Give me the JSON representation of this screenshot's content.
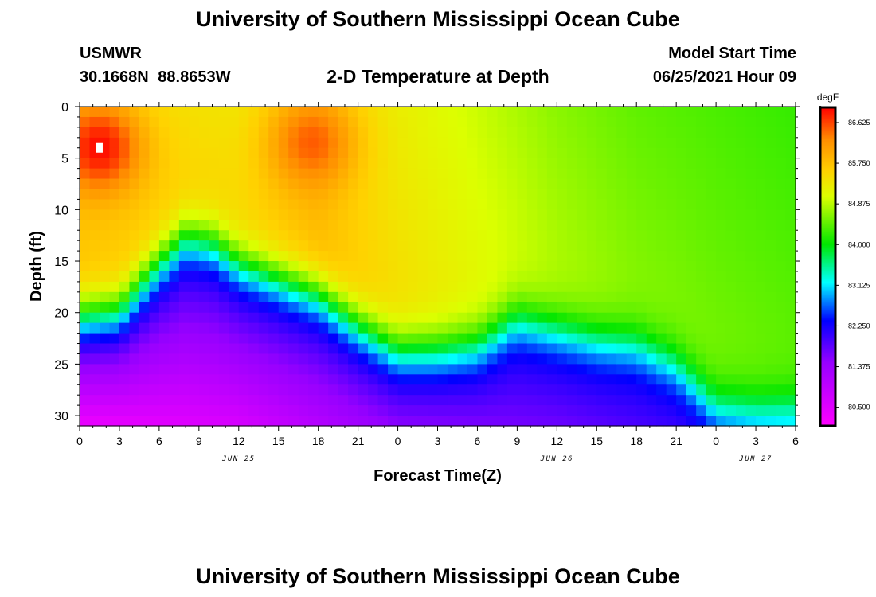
{
  "header": {
    "title": "University of Southern Mississippi Ocean Cube",
    "station": "USMWR",
    "coordinates": "30.1668N  88.8653W",
    "chart_title": "2-D Temperature at Depth",
    "model_start_label": "Model Start Time",
    "model_start_value": "06/25/2021 Hour 09"
  },
  "footer": {
    "title": "University of Southern Mississippi Ocean Cube"
  },
  "chart_data": {
    "type": "heatmap",
    "title": "2-D Temperature at Depth",
    "xlabel": "Forecast Time(Z)",
    "ylabel": "Depth (ft)",
    "x_range_hours": [
      0,
      54
    ],
    "x_ticks": [
      0,
      3,
      6,
      9,
      12,
      15,
      18,
      21,
      24,
      27,
      30,
      33,
      36,
      39,
      42,
      45,
      48,
      51,
      54
    ],
    "x_tick_labels": [
      "0",
      "3",
      "6",
      "9",
      "12",
      "15",
      "18",
      "21",
      "0",
      "3",
      "6",
      "9",
      "12",
      "15",
      "18",
      "21",
      "0",
      "3",
      "6"
    ],
    "date_labels": [
      {
        "text": "JUN 25",
        "at_hour": 12
      },
      {
        "text": "JUN 26",
        "at_hour": 36
      },
      {
        "text": "JUN 27",
        "at_hour": 51
      }
    ],
    "y_range": [
      0,
      31
    ],
    "y_ticks": [
      0,
      5,
      10,
      15,
      20,
      25,
      30
    ],
    "y_tick_labels": [
      "0",
      "5",
      "10",
      "15",
      "20",
      "25",
      "30"
    ],
    "colorbar": {
      "unit": "degF",
      "min": 80.1,
      "max": 86.95,
      "tick_values": [
        86.625,
        85.75,
        84.875,
        84.0,
        83.125,
        82.25,
        81.375,
        80.5
      ],
      "tick_labels": [
        "86.625",
        "85.750",
        "84.875",
        "84.000",
        "83.125",
        "82.250",
        "81.375",
        "80.500"
      ]
    },
    "surface_temperature_degF": [
      {
        "hour": 0,
        "value": 85.8
      },
      {
        "hour": 12,
        "value": 85.6
      },
      {
        "hour": 18,
        "value": 85.9
      },
      {
        "hour": 24,
        "value": 85.5
      },
      {
        "hour": 30,
        "value": 85.2
      },
      {
        "hour": 36,
        "value": 84.9
      },
      {
        "hour": 42,
        "value": 84.7
      },
      {
        "hour": 48,
        "value": 84.6
      },
      {
        "hour": 54,
        "value": 84.5
      }
    ],
    "surface_layer_peak_degF": [
      {
        "hour": 1.5,
        "depth_ft": 4,
        "value": 86.9
      },
      {
        "hour": 17.5,
        "depth_ft": 3.5,
        "value": 86.5
      }
    ],
    "thermocline_depth_ft": [
      {
        "hour": 0,
        "depth": 20
      },
      {
        "hour": 3,
        "depth": 19.5
      },
      {
        "hour": 6,
        "depth": 15
      },
      {
        "hour": 8,
        "depth": 12.5
      },
      {
        "hour": 10,
        "depth": 13
      },
      {
        "hour": 12,
        "depth": 15
      },
      {
        "hour": 15,
        "depth": 16.5
      },
      {
        "hour": 18,
        "depth": 18
      },
      {
        "hour": 21,
        "depth": 21
      },
      {
        "hour": 24,
        "depth": 23.5
      },
      {
        "hour": 27,
        "depth": 23.5
      },
      {
        "hour": 30,
        "depth": 23
      },
      {
        "hour": 33,
        "depth": 20.5
      },
      {
        "hour": 36,
        "depth": 21.5
      },
      {
        "hour": 39,
        "depth": 22.5
      },
      {
        "hour": 42,
        "depth": 23
      },
      {
        "hour": 45,
        "depth": 25
      },
      {
        "hour": 48,
        "depth": 29
      },
      {
        "hour": 51,
        "depth": 29.5
      },
      {
        "hour": 54,
        "depth": 29.5
      }
    ],
    "bottom_temperature_degF": [
      {
        "hour": 0,
        "value": 80.3
      },
      {
        "hour": 12,
        "value": 80.6
      },
      {
        "hour": 24,
        "value": 81.5
      },
      {
        "hour": 36,
        "value": 81.7
      },
      {
        "hour": 45,
        "value": 82.0
      },
      {
        "hour": 54,
        "value": 82.6
      }
    ],
    "marker": {
      "hour": 1.5,
      "depth_ft": 4,
      "shape": "white-square"
    },
    "grid": false
  }
}
